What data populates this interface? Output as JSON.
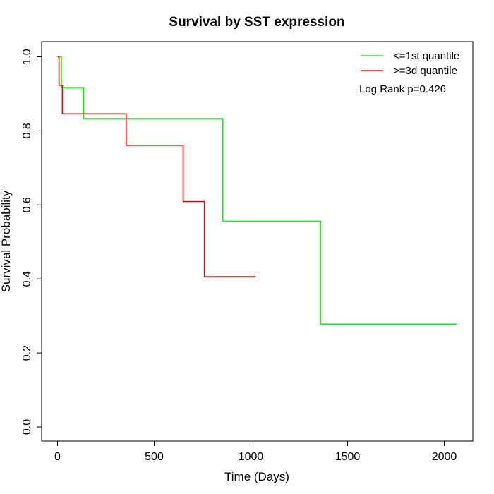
{
  "chart_data": {
    "type": "line",
    "title": "Survival by SST expression",
    "xlabel": "Time (Days)",
    "ylabel": "Survival Probability",
    "xlim": [
      0,
      2070
    ],
    "ylim": [
      0,
      1
    ],
    "x_ticks": [
      0,
      500,
      1000,
      1500,
      2000
    ],
    "x_tick_labels": [
      "0",
      "500",
      "1000",
      "1500",
      "2000"
    ],
    "y_ticks": [
      0,
      0.2,
      0.4,
      0.6,
      0.8,
      1.0
    ],
    "y_tick_labels": [
      "0.0",
      "0.2",
      "0.4",
      "0.6",
      "0.8",
      "1.0"
    ],
    "grid": false,
    "legend_position": "top-right",
    "annotation": "Log Rank p=0.426",
    "series": [
      {
        "name": "<=1st quantile",
        "color": "#00ff00",
        "step": true,
        "x": [
          0,
          20,
          135,
          855,
          1360,
          2065
        ],
        "y": [
          1.0,
          0.917,
          0.833,
          0.556,
          0.278,
          0.278
        ]
      },
      {
        "name": ">=3d quantile",
        "color": "#ff0000",
        "step": true,
        "x": [
          0,
          8,
          25,
          355,
          650,
          760,
          1025
        ],
        "y": [
          1.0,
          0.923,
          0.846,
          0.761,
          0.609,
          0.406,
          0.406
        ]
      }
    ]
  }
}
